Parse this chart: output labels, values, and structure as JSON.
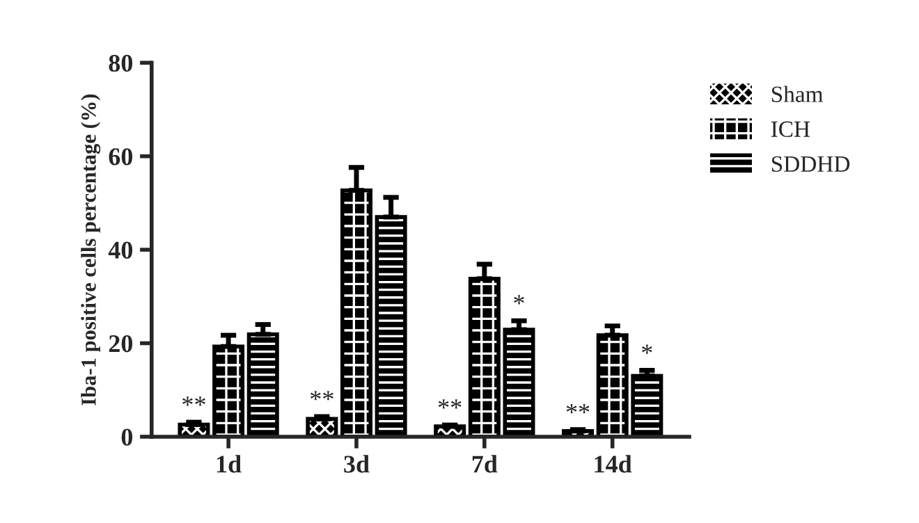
{
  "chart_data": {
    "type": "bar",
    "ylabel": "Iba-1 positive cells percentage (%)",
    "categories": [
      "1d",
      "3d",
      "7d",
      "14d"
    ],
    "series": [
      {
        "name": "Sham",
        "color": "#000000",
        "values": [
          2.6,
          3.8,
          2.2,
          1.2
        ],
        "errors": [
          [
            2.6,
            3.1
          ],
          [
            3.8,
            4.3
          ],
          [
            2.2,
            2.5
          ],
          [
            1.2,
            1.5
          ]
        ],
        "value_labels": [
          "**",
          "**",
          "**",
          "**"
        ]
      },
      {
        "name": "ICH",
        "color": "#000000",
        "values": [
          19.3,
          52.7,
          33.8,
          21.7
        ],
        "errors": [
          [
            19.3,
            21.7
          ],
          [
            52.7,
            57.6
          ],
          [
            33.8,
            36.9
          ],
          [
            21.7,
            23.7
          ]
        ]
      },
      {
        "name": "SDDHD",
        "color": "#000000",
        "values": [
          21.9,
          47.0,
          22.9,
          13.0
        ],
        "errors": [
          [
            21.9,
            24.0
          ],
          [
            47.0,
            51.2
          ],
          [
            22.9,
            24.8
          ],
          [
            13.0,
            14.2
          ]
        ],
        "value_labels": [
          null,
          null,
          "*",
          "*"
        ]
      }
    ],
    "ylim": [
      0,
      80
    ],
    "yticks": [
      0,
      20,
      40,
      60,
      80
    ],
    "grid": false,
    "legend": "right"
  }
}
